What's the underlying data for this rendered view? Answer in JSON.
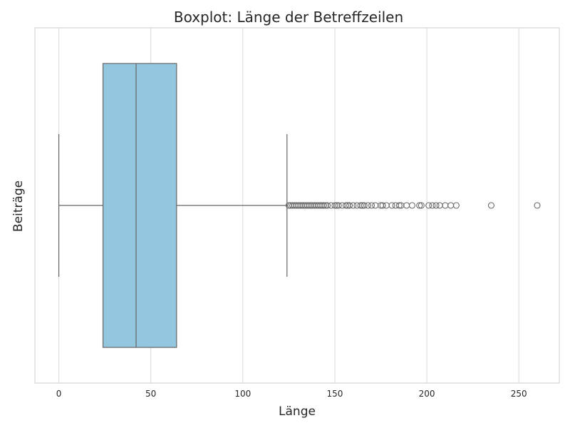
{
  "chart_data": {
    "type": "boxplot",
    "title": "Boxplot: Länge der Betreffzeilen",
    "xlabel": "Länge",
    "ylabel": "Beiträge",
    "xlim": [
      -13,
      272
    ],
    "xticks": [
      0,
      50,
      100,
      150,
      200,
      250
    ],
    "grid": true,
    "orientation": "horizontal",
    "box": {
      "min": 0,
      "q1": 24,
      "median": 42,
      "q3": 64,
      "whisker_low": 0,
      "whisker_high": 124
    },
    "outliers": [
      125,
      126,
      127,
      128,
      129,
      130,
      131,
      132,
      133,
      134,
      135,
      136,
      137,
      138,
      139,
      140,
      141,
      142,
      143,
      144,
      145,
      146,
      148,
      150,
      151,
      152,
      154,
      156,
      157,
      158,
      160,
      162,
      164,
      165,
      166,
      168,
      170,
      172,
      175,
      176,
      178,
      181,
      183,
      185,
      186,
      189,
      192,
      196,
      197,
      201,
      203,
      205,
      207,
      210,
      213,
      216,
      235,
      260
    ],
    "colors": {
      "box_fill": "#92c7df",
      "lines": "#666666",
      "grid": "#d9d9d9",
      "frame": "#cccccc"
    }
  }
}
